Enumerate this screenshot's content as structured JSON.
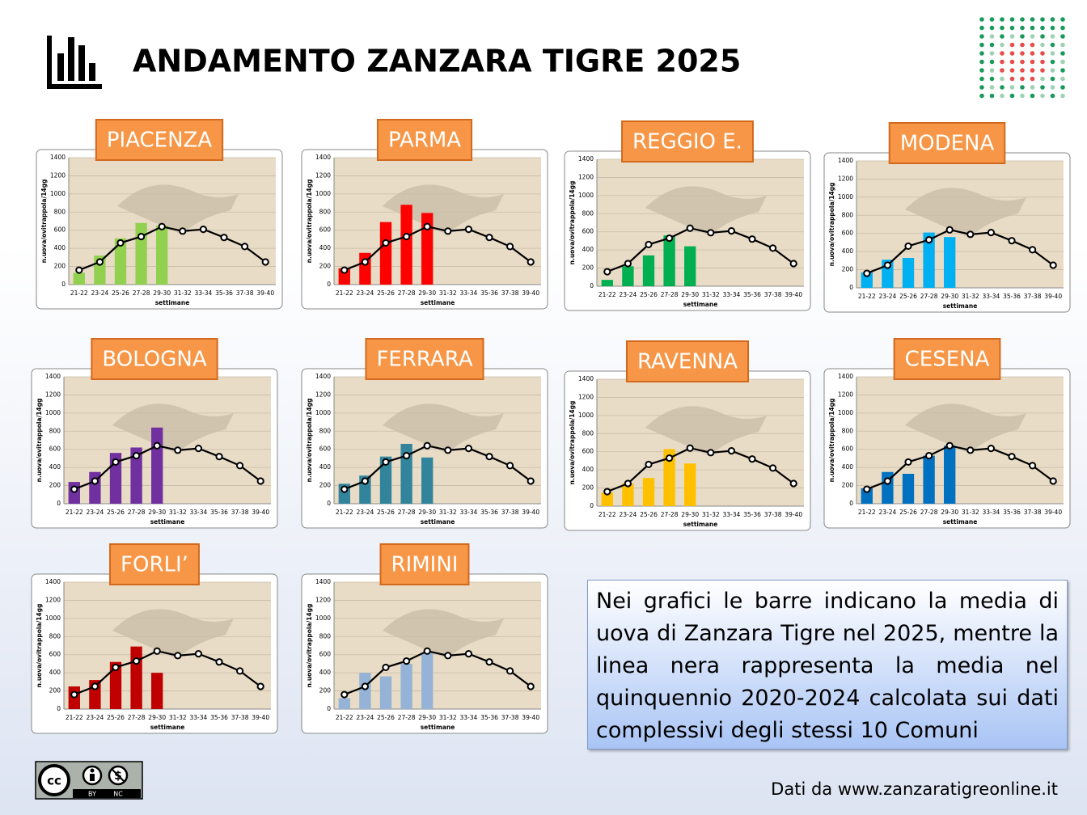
{
  "title": "ANDAMENTO ZANZARA TIGRE 2025",
  "note": "Nei grafici le barre indicano la media di uova di Zanzara Tigre nel 2025, mentre la linea nera rappresenta la media nel quinquennio 2020-2024 calcolata sui dati complessivi degli stessi 10 Comuni",
  "source": "Dati da www.zanzaratigreonline.it",
  "license": [
    "BY",
    "NC"
  ],
  "chart_data": [
    {
      "type": "bar",
      "title": "PIACENZA",
      "ylabel": "n.uova/ovitrappola/14gg",
      "xlabel": "settimane",
      "categories": [
        "21-22",
        "23-24",
        "25-26",
        "27-28",
        "29-30",
        "31-32",
        "33-34",
        "35-36",
        "37-38",
        "39-40"
      ],
      "ylim": [
        0,
        1400
      ],
      "yticks": [
        0,
        200,
        400,
        600,
        800,
        1000,
        1200,
        1400
      ],
      "series": [
        {
          "type": "bar",
          "color": "#92d050",
          "values": [
            130,
            320,
            510,
            680,
            650,
            null,
            null,
            null,
            null,
            null
          ]
        },
        {
          "type": "line",
          "color": "#000000",
          "values": [
            160,
            250,
            460,
            530,
            640,
            590,
            610,
            520,
            420,
            250
          ]
        }
      ]
    },
    {
      "type": "bar",
      "title": "PARMA",
      "ylabel": "n.uova/ovitrappola/14gg",
      "xlabel": "settimane",
      "categories": [
        "21-22",
        "23-24",
        "25-26",
        "27-28",
        "29-30",
        "31-32",
        "33-34",
        "35-36",
        "37-38",
        "39-40"
      ],
      "ylim": [
        0,
        1400
      ],
      "yticks": [
        0,
        200,
        400,
        600,
        800,
        1000,
        1200,
        1400
      ],
      "series": [
        {
          "type": "bar",
          "color": "#ff0000",
          "values": [
            180,
            350,
            690,
            880,
            790,
            null,
            null,
            null,
            null,
            null
          ]
        },
        {
          "type": "line",
          "color": "#000000",
          "values": [
            160,
            250,
            460,
            530,
            640,
            590,
            610,
            520,
            420,
            250
          ]
        }
      ]
    },
    {
      "type": "bar",
      "title": "REGGIO E.",
      "ylabel": "n.uova/ovitrappola/14gg",
      "xlabel": "settimane",
      "categories": [
        "21-22",
        "23-24",
        "25-26",
        "27-28",
        "29-30",
        "31-32",
        "33-34",
        "35-36",
        "37-38",
        "39-40"
      ],
      "ylim": [
        0,
        1400
      ],
      "yticks": [
        0,
        200,
        400,
        600,
        800,
        1000,
        1200,
        1400
      ],
      "series": [
        {
          "type": "bar",
          "color": "#00b050",
          "values": [
            70,
            220,
            340,
            560,
            440,
            null,
            null,
            null,
            null,
            null
          ]
        },
        {
          "type": "line",
          "color": "#000000",
          "values": [
            160,
            250,
            460,
            530,
            640,
            590,
            610,
            520,
            420,
            250
          ]
        }
      ]
    },
    {
      "type": "bar",
      "title": "MODENA",
      "ylabel": "n.uova/ovitrappola/14gg",
      "xlabel": "settimane",
      "categories": [
        "21-22",
        "23-24",
        "25-26",
        "27-28",
        "29-30",
        "31-32",
        "33-34",
        "35-36",
        "37-38",
        "39-40"
      ],
      "ylim": [
        0,
        1400
      ],
      "yticks": [
        0,
        200,
        400,
        600,
        800,
        1000,
        1200,
        1400
      ],
      "series": [
        {
          "type": "bar",
          "color": "#00b0f0",
          "values": [
            170,
            310,
            330,
            610,
            560,
            null,
            null,
            null,
            null,
            null
          ]
        },
        {
          "type": "line",
          "color": "#000000",
          "values": [
            160,
            250,
            460,
            530,
            640,
            590,
            610,
            520,
            420,
            250
          ]
        }
      ]
    },
    {
      "type": "bar",
      "title": "BOLOGNA",
      "ylabel": "n.uova/ovitrappola/14gg",
      "xlabel": "settimane",
      "categories": [
        "21-22",
        "23-24",
        "25-26",
        "27-28",
        "29-30",
        "31-32",
        "33-34",
        "35-36",
        "37-38",
        "39-40"
      ],
      "ylim": [
        0,
        1400
      ],
      "yticks": [
        0,
        200,
        400,
        600,
        800,
        1000,
        1200,
        1400
      ],
      "series": [
        {
          "type": "bar",
          "color": "#7030a0",
          "values": [
            240,
            350,
            560,
            620,
            840,
            null,
            null,
            null,
            null,
            null
          ]
        },
        {
          "type": "line",
          "color": "#000000",
          "values": [
            160,
            250,
            460,
            530,
            640,
            590,
            610,
            520,
            420,
            250
          ]
        }
      ]
    },
    {
      "type": "bar",
      "title": "FERRARA",
      "ylabel": "n.uova/ovitrappola/14gg",
      "xlabel": "settimane",
      "categories": [
        "21-22",
        "23-24",
        "25-26",
        "27-28",
        "29-30",
        "31-32",
        "33-34",
        "35-36",
        "37-38",
        "39-40"
      ],
      "ylim": [
        0,
        1400
      ],
      "yticks": [
        0,
        200,
        400,
        600,
        800,
        1000,
        1200,
        1400
      ],
      "series": [
        {
          "type": "bar",
          "color": "#31849b",
          "values": [
            220,
            310,
            520,
            660,
            510,
            null,
            null,
            null,
            null,
            null
          ]
        },
        {
          "type": "line",
          "color": "#000000",
          "values": [
            160,
            250,
            460,
            530,
            640,
            590,
            610,
            520,
            420,
            250
          ]
        }
      ]
    },
    {
      "type": "bar",
      "title": "RAVENNA",
      "ylabel": "n.uova/ovitrappola/14gg",
      "xlabel": "settimane",
      "categories": [
        "21-22",
        "23-24",
        "25-26",
        "27-28",
        "29-30",
        "31-32",
        "33-34",
        "35-36",
        "37-38",
        "39-40"
      ],
      "ylim": [
        0,
        1400
      ],
      "yticks": [
        0,
        200,
        400,
        600,
        800,
        1000,
        1200,
        1400
      ],
      "series": [
        {
          "type": "bar",
          "color": "#ffc000",
          "values": [
            150,
            250,
            310,
            630,
            470,
            null,
            null,
            null,
            null,
            null
          ]
        },
        {
          "type": "line",
          "color": "#000000",
          "values": [
            160,
            250,
            460,
            530,
            640,
            590,
            610,
            520,
            420,
            250
          ]
        }
      ]
    },
    {
      "type": "bar",
      "title": "CESENA",
      "ylabel": "n.uova/ovitrappola/14gg",
      "xlabel": "settimane",
      "categories": [
        "21-22",
        "23-24",
        "25-26",
        "27-28",
        "29-30",
        "31-32",
        "33-34",
        "35-36",
        "37-38",
        "39-40"
      ],
      "ylim": [
        0,
        1400
      ],
      "yticks": [
        0,
        200,
        400,
        600,
        800,
        1000,
        1200,
        1400
      ],
      "series": [
        {
          "type": "bar",
          "color": "#0070c0",
          "values": [
            170,
            350,
            330,
            530,
            640,
            null,
            null,
            null,
            null,
            null
          ]
        },
        {
          "type": "line",
          "color": "#000000",
          "values": [
            160,
            250,
            460,
            530,
            640,
            590,
            610,
            520,
            420,
            250
          ]
        }
      ]
    },
    {
      "type": "bar",
      "title": "FORLI’",
      "ylabel": "n.uova/ovitrappola/14gg",
      "xlabel": "settimane",
      "categories": [
        "21-22",
        "23-24",
        "25-26",
        "27-28",
        "29-30",
        "31-32",
        "33-34",
        "35-36",
        "37-38",
        "39-40"
      ],
      "ylim": [
        0,
        1400
      ],
      "yticks": [
        0,
        200,
        400,
        600,
        800,
        1000,
        1200,
        1400
      ],
      "series": [
        {
          "type": "bar",
          "color": "#c00000",
          "values": [
            250,
            320,
            520,
            690,
            400,
            null,
            null,
            null,
            null,
            null
          ]
        },
        {
          "type": "line",
          "color": "#000000",
          "values": [
            160,
            250,
            460,
            530,
            640,
            590,
            610,
            520,
            420,
            250
          ]
        }
      ]
    },
    {
      "type": "bar",
      "title": "RIMINI",
      "ylabel": "n.uova/ovitrappola/14gg",
      "xlabel": "settimane",
      "categories": [
        "21-22",
        "23-24",
        "25-26",
        "27-28",
        "29-30",
        "31-32",
        "33-34",
        "35-36",
        "37-38",
        "39-40"
      ],
      "ylim": [
        0,
        1400
      ],
      "yticks": [
        0,
        200,
        400,
        600,
        800,
        1000,
        1200,
        1400
      ],
      "series": [
        {
          "type": "bar",
          "color": "#95b3d7",
          "values": [
            120,
            400,
            360,
            500,
            620,
            null,
            null,
            null,
            null,
            null
          ]
        },
        {
          "type": "line",
          "color": "#000000",
          "values": [
            160,
            250,
            460,
            530,
            640,
            590,
            610,
            520,
            420,
            250
          ]
        }
      ]
    }
  ]
}
